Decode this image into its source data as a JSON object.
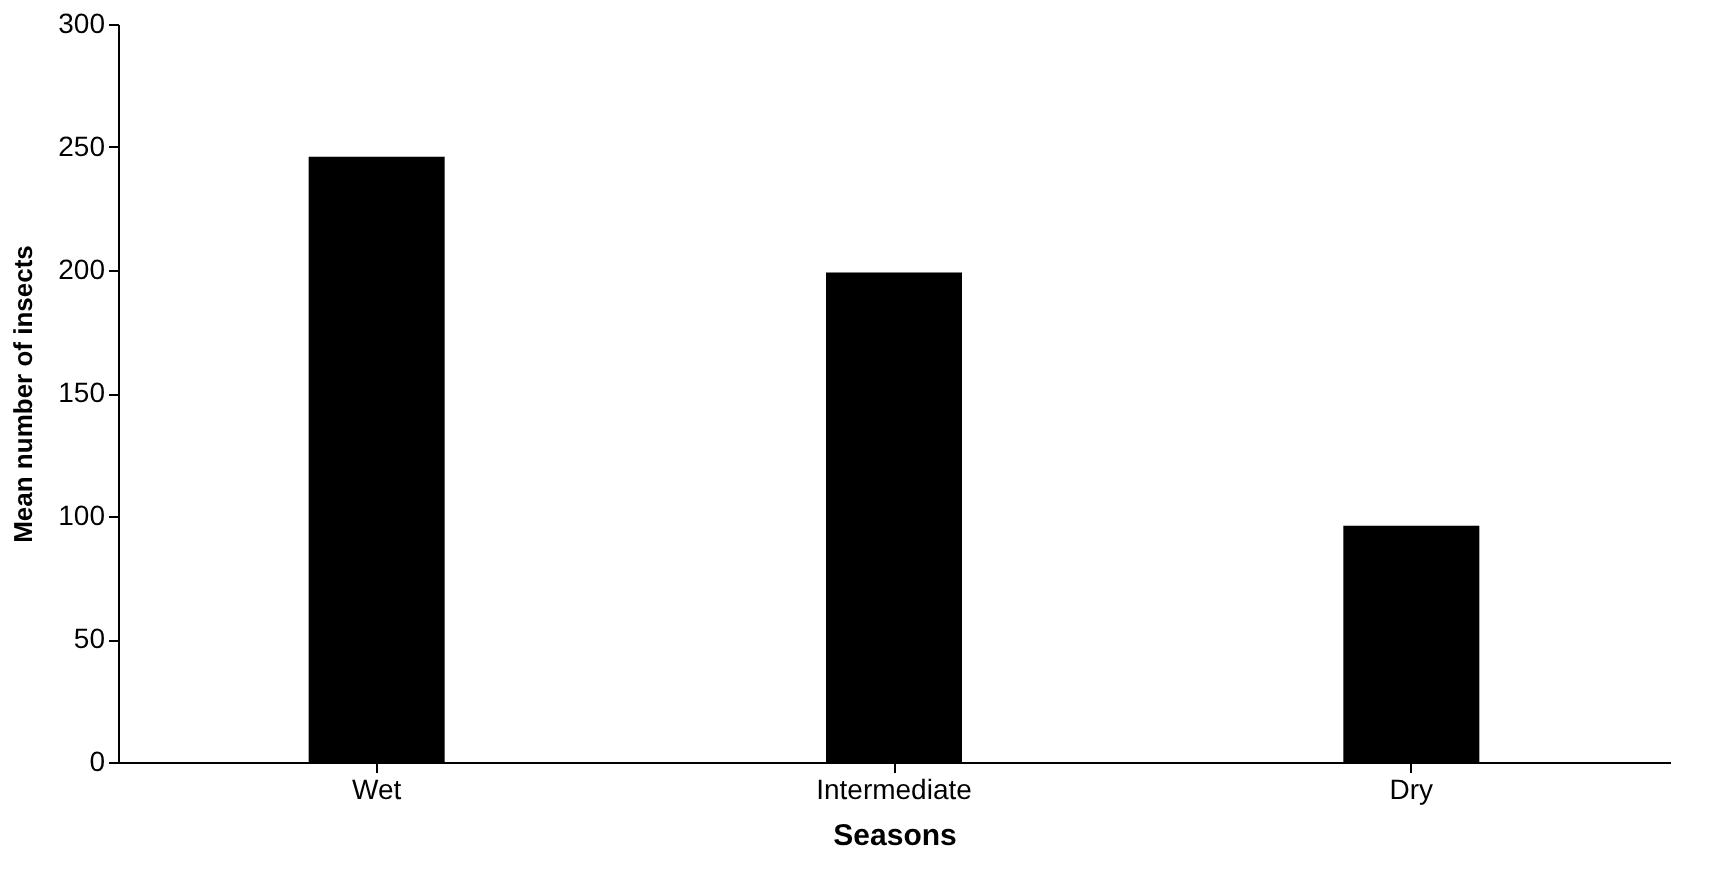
{
  "chart_data": {
    "type": "bar",
    "xlabel": "Seasons",
    "ylabel": "Mean number of insects",
    "categories": [
      "Wet",
      "Intermediate",
      "Dry"
    ],
    "values": [
      246,
      199,
      96
    ],
    "color": "#000000",
    "ylim": [
      0,
      300
    ],
    "yticks": [
      0,
      50,
      100,
      150,
      200,
      250,
      300
    ],
    "grid": false
  }
}
